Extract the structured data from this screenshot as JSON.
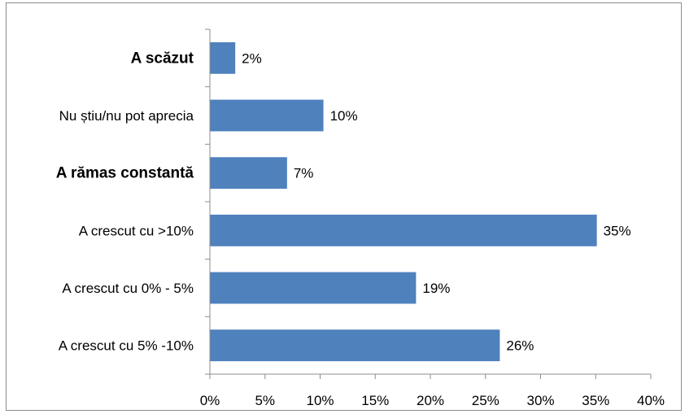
{
  "chart_data": {
    "type": "bar",
    "orientation": "horizontal",
    "categories": [
      "A scăzut",
      "Nu știu/nu pot aprecia",
      "A rămas constantă",
      "A crescut cu  >10%",
      "A crescut cu 0% - 5%",
      "A crescut cu 5% -10%"
    ],
    "bold_categories": [
      true,
      false,
      true,
      false,
      false,
      false
    ],
    "values": [
      2.3,
      10.3,
      7.0,
      35.1,
      18.7,
      26.3
    ],
    "value_labels": [
      "2%",
      "10%",
      "7%",
      "35%",
      "19%",
      "26%"
    ],
    "xlim": [
      0,
      40
    ],
    "x_ticks": [
      0,
      5,
      10,
      15,
      20,
      25,
      30,
      35,
      40
    ],
    "x_tick_labels": [
      "0%",
      "5%",
      "10%",
      "15%",
      "20%",
      "25%",
      "30%",
      "35%",
      "40%"
    ],
    "title": "",
    "xlabel": "",
    "ylabel": "",
    "grid": false,
    "legend": "none",
    "colors": {
      "bar": "#4f81bd",
      "axis": "#8c8c8c"
    }
  }
}
